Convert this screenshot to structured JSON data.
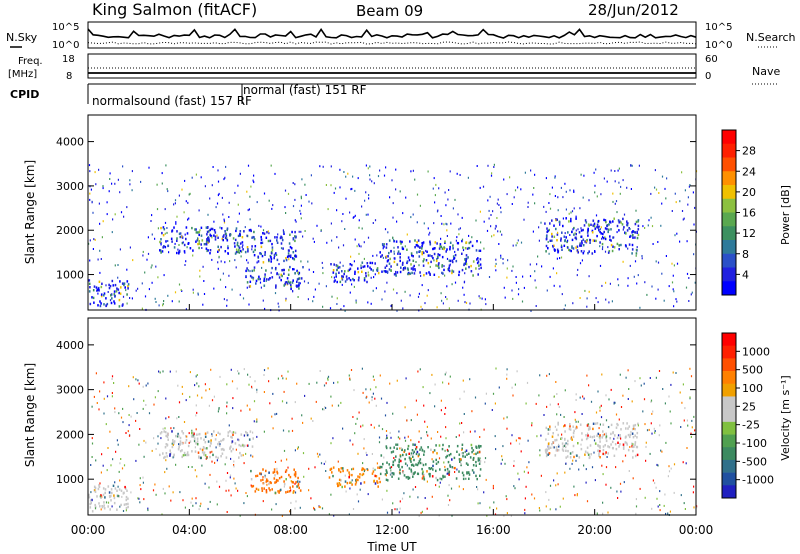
{
  "header": {
    "title": "King Salmon (fitACF)",
    "beam": "Beam 09",
    "date": "28/Jun/2012"
  },
  "panel_labels": {
    "nsky": "N.Sky",
    "nsearch": "N.Search",
    "freq_line1": "Freq.",
    "freq_line2": "[MHz]",
    "nave": "Nave",
    "cpid": "CPID"
  },
  "cpid": {
    "label1": "normalsound (fast) 157 RF",
    "label2": "normal (fast) 151 RF"
  },
  "chart_data": [
    {
      "type": "line",
      "name": "noise-panel",
      "left_ticks": [
        "10^5",
        "10^0"
      ],
      "right_ticks": [
        "10^5",
        "10^0"
      ]
    },
    {
      "type": "line",
      "name": "freq-nave-panel",
      "left_ticks": [
        "18",
        "8"
      ],
      "right_ticks": [
        "60",
        "0"
      ]
    },
    {
      "type": "heatmap",
      "name": "power-panel",
      "ylabel": "Slant Range [km]",
      "yticks": [
        1000,
        2000,
        3000,
        4000
      ],
      "ylim": [
        200,
        4600
      ],
      "xlim": [
        0,
        24
      ],
      "colorbar": {
        "label": "Power [dB]",
        "ticks": [
          "4",
          "8",
          "12",
          "16",
          "20",
          "24",
          "28"
        ],
        "colors": [
          "#0000ff",
          "#2020e0",
          "#2a50c8",
          "#2e7a9a",
          "#3c9060",
          "#5aa850",
          "#8cc040",
          "#f0c000",
          "#ff9000",
          "#ff5000",
          "#ff2000",
          "#ff0000"
        ]
      },
      "echo_regions": [
        {
          "t0": 0.0,
          "t1": 1.6,
          "r0": 300,
          "r1": 900
        },
        {
          "t0": 2.8,
          "t1": 6.5,
          "r0": 1500,
          "r1": 2100
        },
        {
          "t0": 6.5,
          "t1": 8.2,
          "r0": 1300,
          "r1": 2000
        },
        {
          "t0": 6.2,
          "t1": 8.5,
          "r0": 700,
          "r1": 1200
        },
        {
          "t0": 9.5,
          "t1": 11.5,
          "r0": 850,
          "r1": 1300
        },
        {
          "t0": 11.5,
          "t1": 15.5,
          "r0": 1000,
          "r1": 1800
        },
        {
          "t0": 18.0,
          "t1": 21.7,
          "r0": 1500,
          "r1": 2300
        }
      ]
    },
    {
      "type": "heatmap",
      "name": "velocity-panel",
      "ylabel": "Slant Range [km]",
      "yticks": [
        1000,
        2000,
        3000,
        4000
      ],
      "ylim": [
        200,
        4600
      ],
      "xlim": [
        0,
        24
      ],
      "xticks": [
        "00:00",
        "04:00",
        "08:00",
        "12:00",
        "16:00",
        "20:00",
        "00:00"
      ],
      "xlabel": "Time UT",
      "colorbar": {
        "label": "Velocity [m s⁻¹]",
        "ticks": [
          "1000",
          "500",
          "100",
          "25",
          "-25",
          "-100",
          "-500",
          "-1000"
        ],
        "colors": [
          "#2020c0",
          "#2050a0",
          "#30708a",
          "#3c8a60",
          "#50a050",
          "#80c040",
          "#c8c8c8",
          "#c8c8c8",
          "#f0a000",
          "#ff8000",
          "#ff5000",
          "#ff2000",
          "#ff0000"
        ]
      },
      "echo_regions": [
        {
          "t0": 0.0,
          "t1": 1.6,
          "r0": 300,
          "r1": 900,
          "color": "#c8c8c8"
        },
        {
          "t0": 2.8,
          "t1": 6.5,
          "r0": 1500,
          "r1": 2100,
          "color": "#c8c8c8"
        },
        {
          "t0": 6.4,
          "t1": 8.4,
          "r0": 700,
          "r1": 1250,
          "color": "#ff7000"
        },
        {
          "t0": 9.5,
          "t1": 11.5,
          "r0": 850,
          "r1": 1300,
          "color": "#ff8000"
        },
        {
          "t0": 11.5,
          "t1": 15.5,
          "r0": 1000,
          "r1": 1800,
          "color": "#3c8a60"
        },
        {
          "t0": 18.0,
          "t1": 21.7,
          "r0": 1500,
          "r1": 2300,
          "color": "#c8c8c8"
        }
      ]
    }
  ]
}
